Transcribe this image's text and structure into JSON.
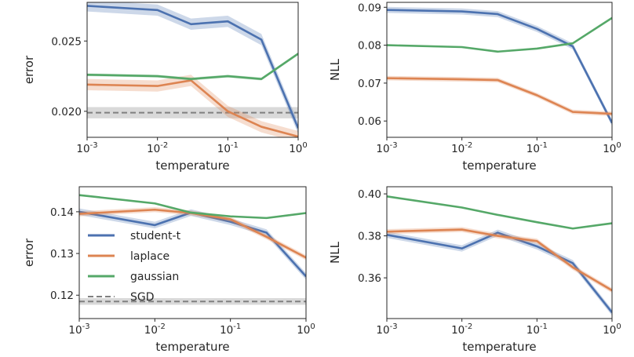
{
  "legend": {
    "entries": [
      {
        "label": "student-t",
        "color": "#4c72b0",
        "dashed": false
      },
      {
        "label": "laplace",
        "color": "#dd8452",
        "dashed": false
      },
      {
        "label": "gaussian",
        "color": "#55a868",
        "dashed": false
      },
      {
        "label": "SGD",
        "color": "#808080",
        "dashed": true
      }
    ]
  },
  "chart_data": [
    {
      "type": "line",
      "xlabel": "temperature",
      "ylabel": "error",
      "xscale": "log",
      "xlim": [
        0.001,
        1
      ],
      "ylim": [
        0.01815,
        0.02775
      ],
      "xticks": [
        "10^-3",
        "10^-2",
        "10^-1",
        "10^0"
      ],
      "yticks": [
        "0.020",
        "0.025"
      ],
      "ytick_values": [
        0.02,
        0.025
      ],
      "x": [
        0.001,
        0.01,
        0.03,
        0.1,
        0.3,
        1
      ],
      "series": [
        {
          "name": "student-t",
          "color": "#4c72b0",
          "values": [
            0.0275,
            0.0272,
            0.0262,
            0.0264,
            0.0251,
            0.0188
          ],
          "band": 0.0004
        },
        {
          "name": "laplace",
          "color": "#dd8452",
          "values": [
            0.0219,
            0.0218,
            0.0222,
            0.02,
            0.0189,
            0.0182
          ],
          "band": 0.0004
        },
        {
          "name": "gaussian",
          "color": "#55a868",
          "values": [
            0.0226,
            0.0225,
            0.0223,
            0.0225,
            0.0223,
            0.0241
          ],
          "band": 0.0001
        }
      ],
      "reference": {
        "name": "SGD",
        "value": 0.0199,
        "band": 0.0004,
        "color": "#808080"
      },
      "grid": false
    },
    {
      "type": "line",
      "xlabel": "temperature",
      "ylabel": "NLL",
      "xscale": "log",
      "xlim": [
        0.001,
        1
      ],
      "ylim": [
        0.0557,
        0.0913
      ],
      "xticks": [
        "10^-3",
        "10^-2",
        "10^-1",
        "10^0"
      ],
      "yticks": [
        "0.06",
        "0.07",
        "0.08",
        "0.09"
      ],
      "ytick_values": [
        0.06,
        0.07,
        0.08,
        0.09
      ],
      "x": [
        0.001,
        0.01,
        0.03,
        0.1,
        0.3,
        1
      ],
      "series": [
        {
          "name": "student-t",
          "color": "#4c72b0",
          "values": [
            0.0893,
            0.0889,
            0.0882,
            0.0843,
            0.0797,
            0.0595
          ],
          "band": 0.0008
        },
        {
          "name": "laplace",
          "color": "#dd8452",
          "values": [
            0.0713,
            0.071,
            0.0708,
            0.0668,
            0.0624,
            0.0619
          ],
          "band": 0.0006
        },
        {
          "name": "gaussian",
          "color": "#55a868",
          "values": [
            0.08,
            0.0795,
            0.0783,
            0.0791,
            0.0805,
            0.0872
          ],
          "band": 0.0002
        }
      ],
      "grid": false
    },
    {
      "type": "line",
      "xlabel": "temperature",
      "ylabel": "error",
      "xscale": "log",
      "xlim": [
        0.001,
        1
      ],
      "ylim": [
        0.1144,
        0.146
      ],
      "xticks": [
        "10^-3",
        "10^-2",
        "10^-1",
        "10^0"
      ],
      "yticks": [
        "0.12",
        "0.13",
        "0.14"
      ],
      "ytick_values": [
        0.12,
        0.13,
        0.14
      ],
      "x": [
        0.001,
        0.01,
        0.03,
        0.1,
        0.3,
        1
      ],
      "series": [
        {
          "name": "student-t",
          "color": "#4c72b0",
          "values": [
            0.14,
            0.1368,
            0.1398,
            0.1376,
            0.135,
            0.1245
          ],
          "band": 0.0008
        },
        {
          "name": "laplace",
          "color": "#dd8452",
          "values": [
            0.1395,
            0.1405,
            0.1397,
            0.1382,
            0.134,
            0.129
          ],
          "band": 0.0006
        },
        {
          "name": "gaussian",
          "color": "#55a868",
          "values": [
            0.144,
            0.142,
            0.1398,
            0.1389,
            0.1385,
            0.1397
          ],
          "band": 0.0002
        }
      ],
      "reference": {
        "name": "SGD",
        "value": 0.1185,
        "band": 0.0008,
        "color": "#808080"
      },
      "grid": false
    },
    {
      "type": "line",
      "xlabel": "temperature",
      "ylabel": "NLL",
      "xscale": "log",
      "xlim": [
        0.001,
        1
      ],
      "ylim": [
        0.3406,
        0.4034
      ],
      "xticks": [
        "10^-3",
        "10^-2",
        "10^-1",
        "10^0"
      ],
      "yticks": [
        "0.36",
        "0.38",
        "0.40"
      ],
      "ytick_values": [
        0.36,
        0.38,
        0.4
      ],
      "x": [
        0.001,
        0.01,
        0.03,
        0.1,
        0.3,
        1
      ],
      "series": [
        {
          "name": "student-t",
          "color": "#4c72b0",
          "values": [
            0.3805,
            0.374,
            0.3815,
            0.375,
            0.367,
            0.3435
          ],
          "band": 0.0015
        },
        {
          "name": "laplace",
          "color": "#dd8452",
          "values": [
            0.382,
            0.383,
            0.38,
            0.3775,
            0.365,
            0.354
          ],
          "band": 0.0012
        },
        {
          "name": "gaussian",
          "color": "#55a868",
          "values": [
            0.3988,
            0.3935,
            0.39,
            0.3865,
            0.3835,
            0.386
          ],
          "band": 0.0003
        }
      ],
      "grid": false
    }
  ]
}
